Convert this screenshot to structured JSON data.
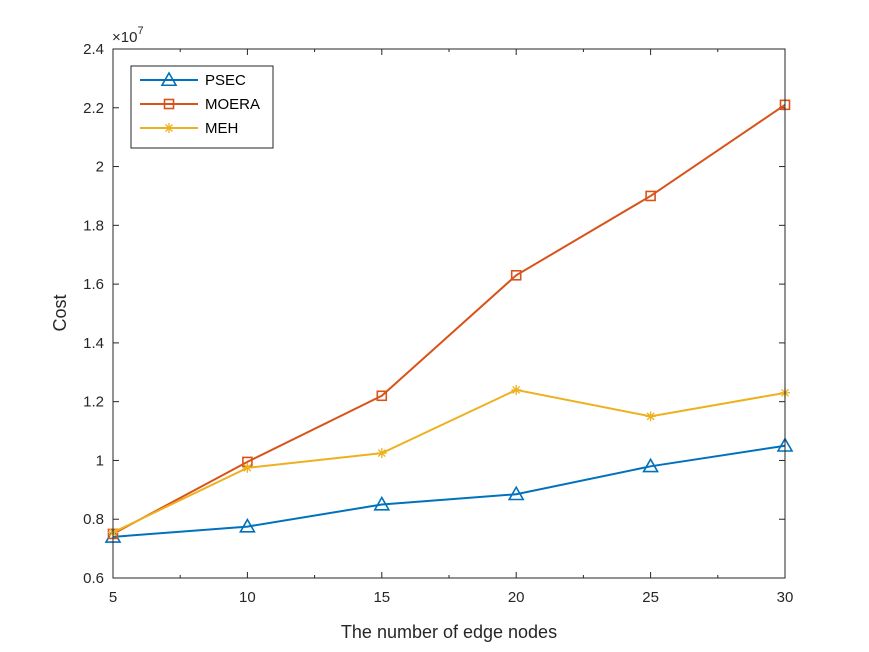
{
  "chart_data": {
    "type": "line",
    "xlabel": "The number of edge nodes",
    "ylabel": "Cost",
    "x": [
      5,
      10,
      15,
      20,
      25,
      30
    ],
    "xlim": [
      5,
      30
    ],
    "xticks": [
      5,
      10,
      15,
      20,
      25,
      30
    ],
    "ylim": [
      0.6,
      2.4
    ],
    "yticks": [
      0.6,
      0.8,
      1,
      1.2,
      1.4,
      1.6,
      1.8,
      2,
      2.2,
      2.4
    ],
    "y_multiplier_base": "×10",
    "y_multiplier_exp": "7",
    "grid": false,
    "legend_position": "top-left",
    "series": [
      {
        "name": "PSEC",
        "marker": "triangle",
        "color": "#0072BD",
        "values": [
          0.74,
          0.775,
          0.85,
          0.885,
          0.98,
          1.05
        ]
      },
      {
        "name": "MOERA",
        "marker": "square",
        "color": "#D95319",
        "values": [
          0.75,
          0.995,
          1.22,
          1.63,
          1.9,
          2.21
        ]
      },
      {
        "name": "MEH",
        "marker": "asterisk",
        "color": "#EDB120",
        "values": [
          0.755,
          0.975,
          1.025,
          1.24,
          1.15,
          1.23
        ]
      }
    ]
  }
}
